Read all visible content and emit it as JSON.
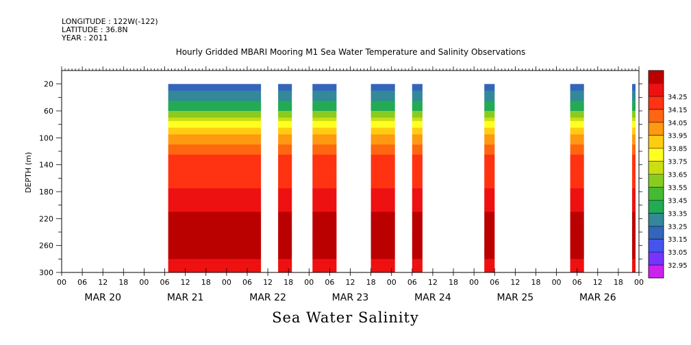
{
  "header": {
    "longitude": "LONGITUDE : 122W(-122)",
    "latitude": "LATITUDE : 36.8N",
    "year": "YEAR : 2011"
  },
  "chart_data": {
    "type": "heatmap",
    "title": "Hourly Gridded MBARI Mooring M1 Sea Water Temperature and Salinity Observations",
    "bottom_title": "Sea Water Salinity",
    "ylabel": "DEPTH (m)",
    "y_reversed": true,
    "ylim": [
      0,
      300
    ],
    "y_ticks": [
      20,
      60,
      100,
      140,
      180,
      220,
      260,
      300
    ],
    "x_range_hours": [
      0,
      168
    ],
    "x_hour_ticks": [
      "00",
      "06",
      "12",
      "18",
      "00",
      "06",
      "12",
      "18",
      "00",
      "06",
      "12",
      "18",
      "00",
      "06",
      "12",
      "18",
      "00",
      "06",
      "12",
      "18",
      "00",
      "06",
      "12",
      "18",
      "00",
      "06",
      "12",
      "18",
      "00"
    ],
    "x_day_labels": [
      "MAR 20",
      "MAR 21",
      "MAR 22",
      "MAR 23",
      "MAR 24",
      "MAR 25",
      "MAR 26"
    ],
    "colorbar": {
      "values": [
        32.95,
        33.05,
        33.15,
        33.25,
        33.35,
        33.45,
        33.55,
        33.65,
        33.75,
        33.85,
        33.95,
        34.05,
        34.15,
        34.25
      ],
      "colors": [
        "#cc22ee",
        "#7733ff",
        "#4455ee",
        "#3366bb",
        "#338899",
        "#22aa55",
        "#44bb33",
        "#88cc22",
        "#ccdd11",
        "#ffff22",
        "#ffcc11",
        "#ff9911",
        "#ff6611",
        "#ff3311",
        "#ee1111",
        "#bb0000"
      ]
    },
    "data_hour_ranges": [
      [
        31,
        58
      ],
      [
        63,
        67
      ],
      [
        73,
        80
      ],
      [
        90,
        97
      ],
      [
        102,
        105
      ],
      [
        123,
        126
      ],
      [
        148,
        152
      ],
      [
        166,
        167
      ]
    ]
  }
}
